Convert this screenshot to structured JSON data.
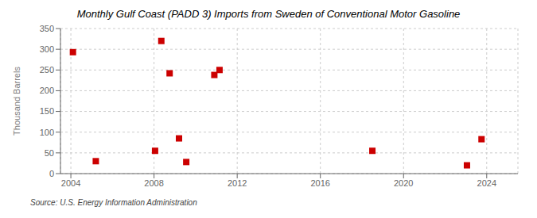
{
  "chart_data": {
    "type": "scatter",
    "title": "Monthly Gulf Coast (PADD 3) Imports from Sweden of Conventional Motor Gasoline",
    "ylabel": "Thousand Barrels",
    "source": "Source: U.S. Energy Information Administration",
    "x": [
      2004.1,
      2005.2,
      2008.05,
      2008.35,
      2008.75,
      2009.2,
      2009.55,
      2010.9,
      2011.15,
      2018.5,
      2023.05,
      2023.75
    ],
    "values": [
      293,
      30,
      55,
      320,
      242,
      85,
      28,
      238,
      250,
      55,
      20,
      83
    ],
    "color": "#cc0000",
    "marker": "square",
    "xlim": [
      2003.5,
      2025.5
    ],
    "ylim": [
      0,
      350
    ],
    "xticks": [
      2004,
      2008,
      2012,
      2016,
      2020,
      2024
    ],
    "yticks": [
      0,
      50,
      100,
      150,
      200,
      250,
      300,
      350
    ],
    "grid": true
  }
}
